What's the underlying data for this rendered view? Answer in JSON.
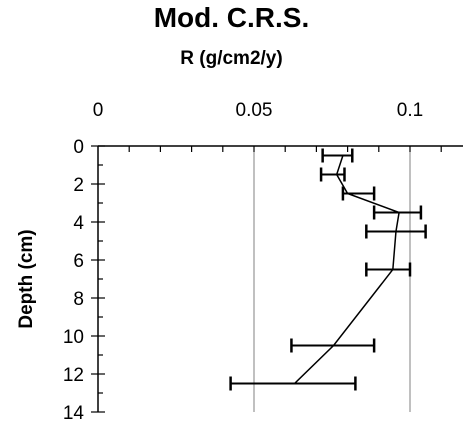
{
  "chart_data": {
    "type": "line",
    "title": "Mod. C.R.S.",
    "xlabel": "R (g/cm2/y)",
    "ylabel": "Depth (cm)",
    "x_axis_position": "top",
    "y_axis_inverted": true,
    "xlim": [
      0,
      0.12
    ],
    "ylim": [
      0,
      14
    ],
    "x_tick_labels": [
      "0",
      "0.05",
      "0.1"
    ],
    "x_ticks": [
      0,
      0.05,
      0.1
    ],
    "y_ticks": [
      0,
      2,
      4,
      6,
      8,
      10,
      12,
      14
    ],
    "y_tick_labels": [
      "0",
      "2",
      "4",
      "6",
      "8",
      "10",
      "12",
      "14"
    ],
    "grid": "vertical",
    "colors": {
      "line": "#000000",
      "grid": "#808080",
      "axis": "#000000"
    },
    "series": [
      {
        "points": [
          {
            "depth": 0.5,
            "r": 0.0785,
            "err_low": 0.072,
            "err_high": 0.0815
          },
          {
            "depth": 1.5,
            "r": 0.0765,
            "err_low": 0.0715,
            "err_high": 0.079
          },
          {
            "depth": 2.5,
            "r": 0.08,
            "err_low": 0.0785,
            "err_high": 0.0885
          },
          {
            "depth": 3.5,
            "r": 0.0965,
            "err_low": 0.0885,
            "err_high": 0.1035
          },
          {
            "depth": 4.5,
            "r": 0.0955,
            "err_low": 0.086,
            "err_high": 0.105
          },
          {
            "depth": 6.5,
            "r": 0.0945,
            "err_low": 0.086,
            "err_high": 0.1
          },
          {
            "depth": 10.5,
            "r": 0.0755,
            "err_low": 0.062,
            "err_high": 0.0885
          },
          {
            "depth": 12.5,
            "r": 0.063,
            "err_low": 0.0425,
            "err_high": 0.0825
          }
        ]
      }
    ]
  }
}
